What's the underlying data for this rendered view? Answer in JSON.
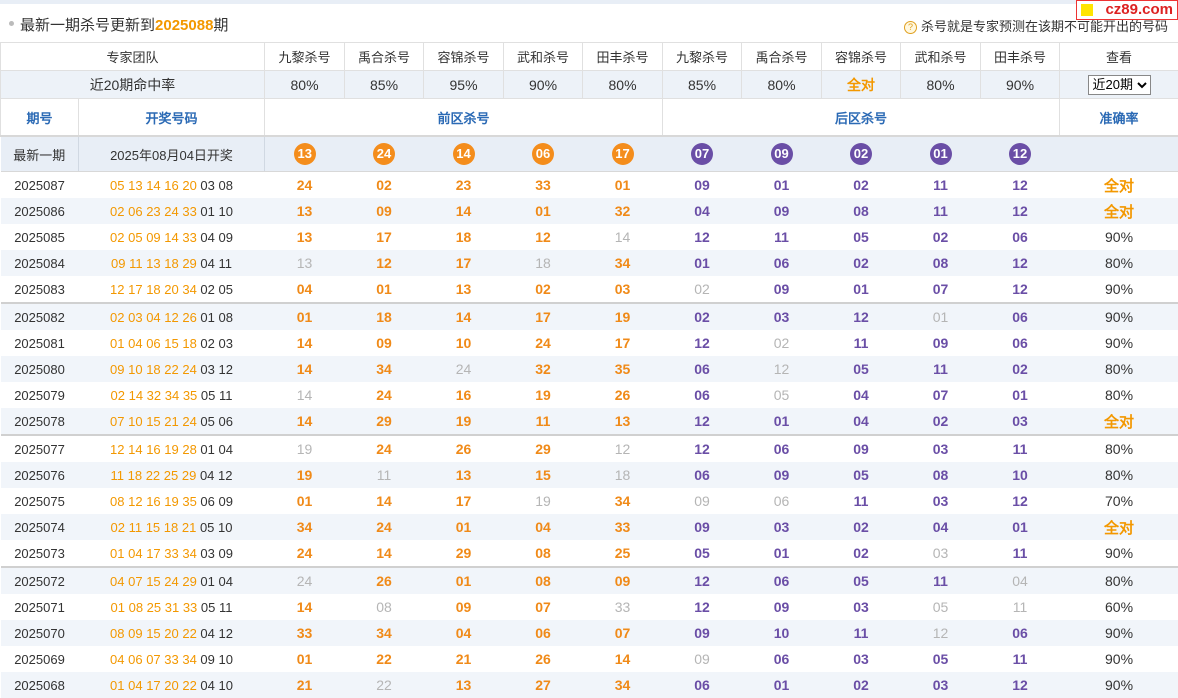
{
  "topbar": {
    "title_prefix": "最新一期杀号更新到",
    "issue": "2025088",
    "title_suffix": "期",
    "note": "杀号就是专家预测在该期不可能开出的号码"
  },
  "logo": "cz89.com",
  "experts": {
    "team_label": "专家团队",
    "rate_label": "近20期命中率",
    "view_label": "查看",
    "names": [
      "九黎杀号",
      "禹合杀号",
      "容锦杀号",
      "武和杀号",
      "田丰杀号",
      "九黎杀号",
      "禹合杀号",
      "容锦杀号",
      "武和杀号",
      "田丰杀号"
    ],
    "rates": [
      "80%",
      "85%",
      "95%",
      "90%",
      "80%",
      "85%",
      "80%",
      "全对",
      "80%",
      "90%"
    ],
    "period_select": {
      "selected": "近20期",
      "options": [
        "近20期"
      ]
    }
  },
  "header": {
    "period": "期号",
    "draw": "开奖号码",
    "front": "前区杀号",
    "back": "后区杀号",
    "accuracy": "准确率"
  },
  "latest": {
    "label": "最新一期",
    "draw_text": "2025年08月04日开奖",
    "front_kills": [
      "13",
      "24",
      "14",
      "06",
      "17"
    ],
    "back_kills": [
      "07",
      "09",
      "02",
      "01",
      "12"
    ]
  },
  "rows": [
    {
      "period": "2025087",
      "front": "05 13 14 16 20",
      "back": "03 08",
      "fk": [
        "24",
        "02",
        "23",
        "33",
        "01"
      ],
      "bk": [
        "09",
        "01",
        "02",
        "11",
        "12"
      ],
      "miss": [],
      "acc": "全对"
    },
    {
      "period": "2025086",
      "front": "02 06 23 24 33",
      "back": "01 10",
      "fk": [
        "13",
        "09",
        "14",
        "01",
        "32"
      ],
      "bk": [
        "04",
        "09",
        "08",
        "11",
        "12"
      ],
      "miss": [],
      "acc": "全对"
    },
    {
      "period": "2025085",
      "front": "02 05 09 14 33",
      "back": "04 09",
      "fk": [
        "13",
        "17",
        "18",
        "12",
        "14"
      ],
      "bk": [
        "12",
        "11",
        "05",
        "02",
        "06"
      ],
      "miss": [
        4
      ],
      "acc": "90%"
    },
    {
      "period": "2025084",
      "front": "09 11 13 18 29",
      "back": "04 11",
      "fk": [
        "13",
        "12",
        "17",
        "18",
        "34"
      ],
      "bk": [
        "01",
        "06",
        "02",
        "08",
        "12"
      ],
      "miss": [
        0,
        3
      ],
      "acc": "80%"
    },
    {
      "period": "2025083",
      "front": "12 17 18 20 34",
      "back": "02 05",
      "fk": [
        "04",
        "01",
        "13",
        "02",
        "03"
      ],
      "bk": [
        "02",
        "09",
        "01",
        "07",
        "12"
      ],
      "miss": [
        5
      ],
      "acc": "90%"
    },
    {
      "period": "2025082",
      "front": "02 03 04 12 26",
      "back": "01 08",
      "fk": [
        "01",
        "18",
        "14",
        "17",
        "19"
      ],
      "bk": [
        "02",
        "03",
        "12",
        "01",
        "06"
      ],
      "miss": [
        8
      ],
      "acc": "90%"
    },
    {
      "period": "2025081",
      "front": "01 04 06 15 18",
      "back": "02 03",
      "fk": [
        "14",
        "09",
        "10",
        "24",
        "17"
      ],
      "bk": [
        "12",
        "02",
        "11",
        "09",
        "06"
      ],
      "miss": [
        6
      ],
      "acc": "90%"
    },
    {
      "period": "2025080",
      "front": "09 10 18 22 24",
      "back": "03 12",
      "fk": [
        "14",
        "34",
        "24",
        "32",
        "35"
      ],
      "bk": [
        "06",
        "12",
        "05",
        "11",
        "02"
      ],
      "miss": [
        2,
        6
      ],
      "acc": "80%"
    },
    {
      "period": "2025079",
      "front": "02 14 32 34 35",
      "back": "05 11",
      "fk": [
        "14",
        "24",
        "16",
        "19",
        "26"
      ],
      "bk": [
        "06",
        "05",
        "04",
        "07",
        "01"
      ],
      "miss": [
        0,
        6
      ],
      "acc": "80%"
    },
    {
      "period": "2025078",
      "front": "07 10 15 21 24",
      "back": "05 06",
      "fk": [
        "14",
        "29",
        "19",
        "11",
        "13"
      ],
      "bk": [
        "12",
        "01",
        "04",
        "02",
        "03"
      ],
      "miss": [],
      "acc": "全对"
    },
    {
      "period": "2025077",
      "front": "12 14 16 19 28",
      "back": "01 04",
      "fk": [
        "19",
        "24",
        "26",
        "29",
        "12"
      ],
      "bk": [
        "12",
        "06",
        "09",
        "03",
        "11"
      ],
      "miss": [
        0,
        4
      ],
      "acc": "80%"
    },
    {
      "period": "2025076",
      "front": "11 18 22 25 29",
      "back": "04 12",
      "fk": [
        "19",
        "11",
        "13",
        "15",
        "18"
      ],
      "bk": [
        "06",
        "09",
        "05",
        "08",
        "10"
      ],
      "miss": [
        1,
        4
      ],
      "acc": "80%"
    },
    {
      "period": "2025075",
      "front": "08 12 16 19 35",
      "back": "06 09",
      "fk": [
        "01",
        "14",
        "17",
        "19",
        "34"
      ],
      "bk": [
        "09",
        "06",
        "11",
        "03",
        "12"
      ],
      "miss": [
        3,
        5,
        6
      ],
      "acc": "70%"
    },
    {
      "period": "2025074",
      "front": "02 11 15 18 21",
      "back": "05 10",
      "fk": [
        "34",
        "24",
        "01",
        "04",
        "33"
      ],
      "bk": [
        "09",
        "03",
        "02",
        "04",
        "01"
      ],
      "miss": [],
      "acc": "全对"
    },
    {
      "period": "2025073",
      "front": "01 04 17 33 34",
      "back": "03 09",
      "fk": [
        "24",
        "14",
        "29",
        "08",
        "25"
      ],
      "bk": [
        "05",
        "01",
        "02",
        "03",
        "11"
      ],
      "miss": [
        8
      ],
      "acc": "90%"
    },
    {
      "period": "2025072",
      "front": "04 07 15 24 29",
      "back": "01 04",
      "fk": [
        "24",
        "26",
        "01",
        "08",
        "09"
      ],
      "bk": [
        "12",
        "06",
        "05",
        "11",
        "04"
      ],
      "miss": [
        0,
        9
      ],
      "acc": "80%"
    },
    {
      "period": "2025071",
      "front": "01 08 25 31 33",
      "back": "05 11",
      "fk": [
        "14",
        "08",
        "09",
        "07",
        "33"
      ],
      "bk": [
        "12",
        "09",
        "03",
        "05",
        "11"
      ],
      "miss": [
        1,
        4,
        8,
        9
      ],
      "acc": "60%"
    },
    {
      "period": "2025070",
      "front": "08 09 15 20 22",
      "back": "04 12",
      "fk": [
        "33",
        "34",
        "04",
        "06",
        "07"
      ],
      "bk": [
        "09",
        "10",
        "11",
        "12",
        "06"
      ],
      "miss": [
        8
      ],
      "acc": "90%"
    },
    {
      "period": "2025069",
      "front": "04 06 07 33 34",
      "back": "09 10",
      "fk": [
        "01",
        "22",
        "21",
        "26",
        "14"
      ],
      "bk": [
        "09",
        "06",
        "03",
        "05",
        "11"
      ],
      "miss": [
        5
      ],
      "acc": "90%"
    },
    {
      "period": "2025068",
      "front": "01 04 17 20 22",
      "back": "04 10",
      "fk": [
        "21",
        "22",
        "13",
        "27",
        "34"
      ],
      "bk": [
        "06",
        "01",
        "02",
        "03",
        "12"
      ],
      "miss": [
        1
      ],
      "acc": "90%"
    }
  ]
}
